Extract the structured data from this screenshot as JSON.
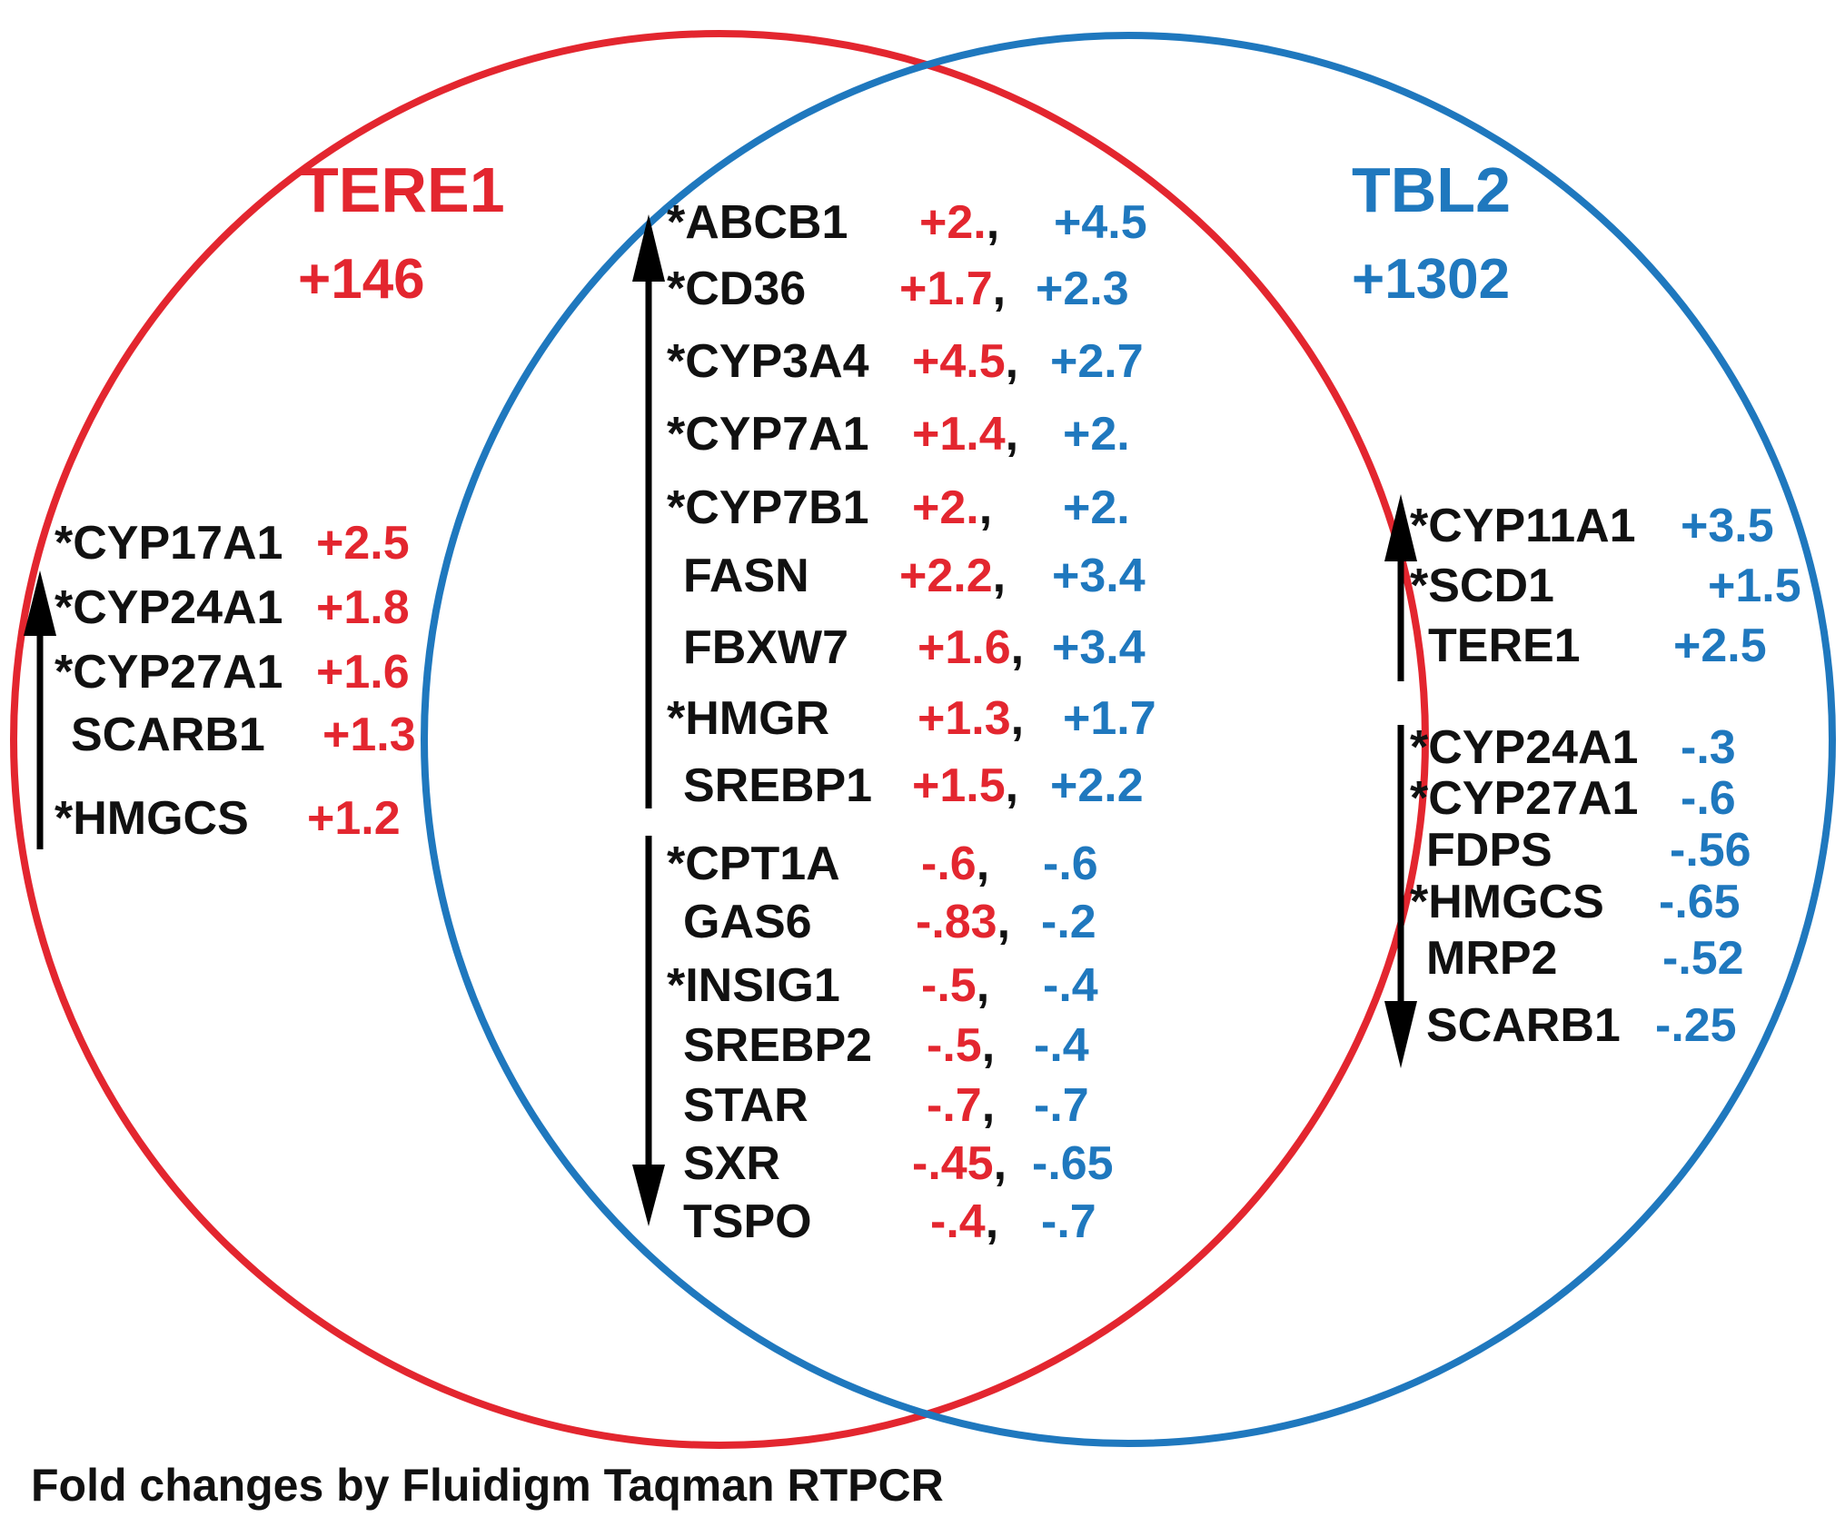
{
  "colors": {
    "tere1": "#e3262f",
    "tbl2": "#1f78be",
    "text": "#111111",
    "arrow": "#000000"
  },
  "tere1": {
    "title": "TERE1",
    "count": "+146"
  },
  "tbl2": {
    "title": "TBL2",
    "count": "+1302"
  },
  "footer": "Fold changes by Fluidigm Taqman RTPCR",
  "tere1_only": {
    "up": [
      {
        "gene": "*CYP17A1",
        "value": "+2.5"
      },
      {
        "gene": "*CYP24A1",
        "value": "+1.8"
      },
      {
        "gene": "*CYP27A1",
        "value": "+1.6"
      },
      {
        "gene": "SCARB1",
        "value": "+1.3"
      },
      {
        "gene": "*HMGCS",
        "value": "+1.2"
      }
    ]
  },
  "shared": {
    "up": [
      {
        "gene": "*ABCB1",
        "tere1": "+2.",
        "tbl2": "+4.5"
      },
      {
        "gene": "*CD36",
        "tere1": "+1.7",
        "tbl2": "+2.3"
      },
      {
        "gene": "*CYP3A4",
        "tere1": "+4.5",
        "tbl2": "+2.7"
      },
      {
        "gene": "*CYP7A1",
        "tere1": "+1.4",
        "tbl2": "+2."
      },
      {
        "gene": "*CYP7B1",
        "tere1": "+2.",
        "tbl2": "+2."
      },
      {
        "gene": "FASN",
        "tere1": "+2.2",
        "tbl2": "+3.4"
      },
      {
        "gene": "FBXW7",
        "tere1": "+1.6",
        "tbl2": "+3.4"
      },
      {
        "gene": "*HMGR",
        "tere1": "+1.3",
        "tbl2": "+1.7"
      },
      {
        "gene": "SREBP1",
        "tere1": "+1.5",
        "tbl2": "+2.2"
      }
    ],
    "down": [
      {
        "gene": "*CPT1A",
        "tere1": "-.6",
        "tbl2": "-.6"
      },
      {
        "gene": "GAS6",
        "tere1": "-.83",
        "tbl2": "-.2"
      },
      {
        "gene": "*INSIG1",
        "tere1": "-.5",
        "tbl2": "-.4"
      },
      {
        "gene": "SREBP2",
        "tere1": "-.5",
        "tbl2": "-.4"
      },
      {
        "gene": "STAR",
        "tere1": "-.7",
        "tbl2": "-.7"
      },
      {
        "gene": "SXR",
        "tere1": "-.45",
        "tbl2": "-.65"
      },
      {
        "gene": "TSPO",
        "tere1": "-.4",
        "tbl2": "-.7"
      }
    ]
  },
  "tbl2_only": {
    "up": [
      {
        "gene": "*CYP11A1",
        "value": "+3.5"
      },
      {
        "gene": "*SCD1",
        "value": "+1.5"
      },
      {
        "gene": "TERE1",
        "value": "+2.5"
      }
    ],
    "down": [
      {
        "gene": "*CYP24A1",
        "value": "-.3"
      },
      {
        "gene": "*CYP27A1",
        "value": "-.6"
      },
      {
        "gene": "FDPS",
        "value": "-.56"
      },
      {
        "gene": "*HMGCS",
        "value": "-.65"
      },
      {
        "gene": "MRP2",
        "value": "-.52"
      },
      {
        "gene": "SCARB1",
        "value": "-.25"
      }
    ]
  }
}
